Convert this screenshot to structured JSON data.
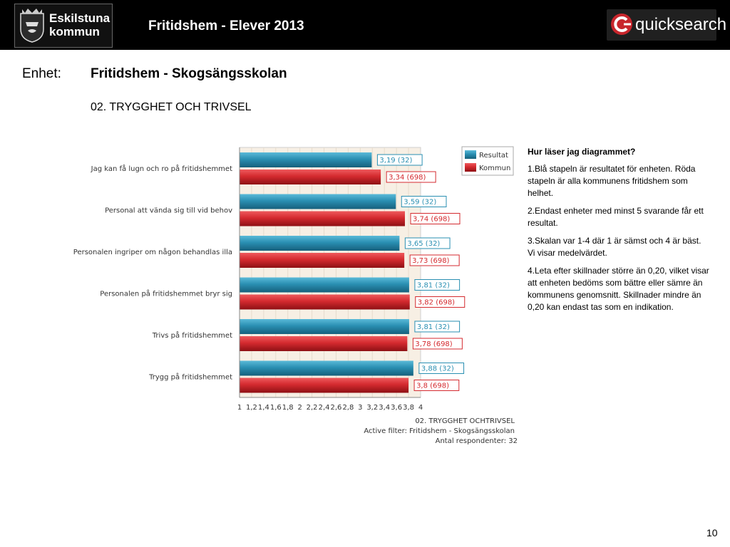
{
  "header": {
    "logo_text_line1": "Eskilstuna",
    "logo_text_line2": "kommun",
    "title": "Fritidshem - Elever 2013",
    "brand_logo_text": "quicksearch"
  },
  "unit": {
    "label": "Enhet:",
    "value": "Fritidshem - Skogsängsskolan"
  },
  "section_title": "02. TRYGGHET OCH TRIVSEL",
  "chart_data": {
    "type": "bar",
    "orientation": "horizontal",
    "categories": [
      "Jag kan få lugn och ro på fritidshemmet",
      "Personal  att vända sig till vid behov",
      "Personalen ingriper om någon behandlas illa",
      "Personalen på fritidshemmet bryr sig",
      "Trivs på fritidshemmet",
      "Trygg på fritidshemmet"
    ],
    "series": [
      {
        "name": "Resultat",
        "color": "#2a8fb2",
        "values": [
          3.19,
          3.59,
          3.65,
          3.81,
          3.81,
          3.88
        ],
        "labels": [
          "3,19 (32)",
          "3,59 (32)",
          "3,65 (32)",
          "3,81 (32)",
          "3,81 (32)",
          "3,88 (32)"
        ]
      },
      {
        "name": "Kommun",
        "color": "#d42a2f",
        "values": [
          3.34,
          3.74,
          3.73,
          3.82,
          3.78,
          3.8
        ],
        "labels": [
          "3,34 (698)",
          "3,74 (698)",
          "3,73 (698)",
          "3,82 (698)",
          "3,78 (698)",
          "3,8 (698)"
        ]
      }
    ],
    "xlim": [
      1,
      4
    ],
    "x_tick_labels": [
      "1",
      "1,2",
      "1,4",
      "1,6",
      "1,8",
      "2",
      "2,2",
      "2,4",
      "2,6",
      "2,8",
      "3",
      "3,2",
      "3,4",
      "3,6",
      "3,8",
      "4"
    ],
    "legend_position": "top-right",
    "footer_lines": [
      "02. TRYGGHET OCHTRIVSEL",
      "Active filter: Fritidshem - Skogsängsskolan",
      "Antal respondenter:  32"
    ]
  },
  "help": {
    "title": "Hur läser jag diagrammet?",
    "items": [
      "1.Blå stapeln är resultatet för enheten. Röda stapeln är alla kommunens fritidshem som helhet.",
      "2.Endast enheter med minst  5 svarande får ett resultat.",
      "3.Skalan var 1-4 där 1 är sämst och 4 är bäst. Vi visar medelvärdet.",
      "4.Leta efter skillnader större än 0,20, vilket visar att enheten bedöms som bättre eller sämre än kommunens genomsnitt. Skillnader mindre än 0,20 kan endast tas som en indikation."
    ]
  },
  "page_number": "10"
}
